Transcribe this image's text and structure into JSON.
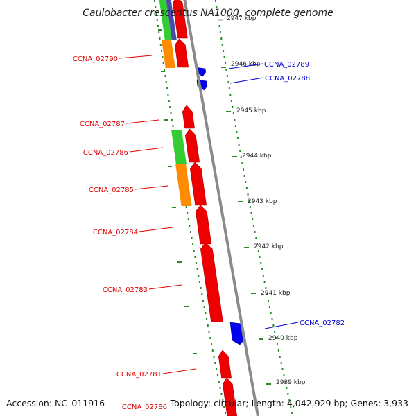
{
  "title": "Caulobacter crescentus NA1000, complete genome",
  "footer": {
    "accession": "Accession: NC_011916",
    "summary": "Topology: circular; Length: 4,042,929 bp; Genes: 3,933"
  },
  "colors": {
    "reverse_gene_label": "#e00000",
    "forward_gene_label": "#0000cc",
    "backbone": "#888888",
    "dotted_ring": "#2a8a2a"
  },
  "ticks": [
    {
      "label": "2947 kbp",
      "faint": true
    },
    {
      "label": "2946 kbp"
    },
    {
      "label": "2945 kbp"
    },
    {
      "label": "2944 kbp"
    },
    {
      "label": "2943 kbp"
    },
    {
      "label": "2942 kbp"
    },
    {
      "label": "2941 kbp"
    },
    {
      "label": "2940 kbp"
    },
    {
      "label": "2939 kbp"
    }
  ],
  "gene_labels": {
    "reverse": [
      "CCNA_02790",
      "CCNA_02787",
      "CCNA_02786",
      "CCNA_02785",
      "CCNA_02784",
      "CCNA_02783",
      "CCNA_02781",
      "CCNA_02780"
    ],
    "forward": [
      "CCNA_02789",
      "CCNA_02788",
      "CCNA_02782"
    ]
  }
}
